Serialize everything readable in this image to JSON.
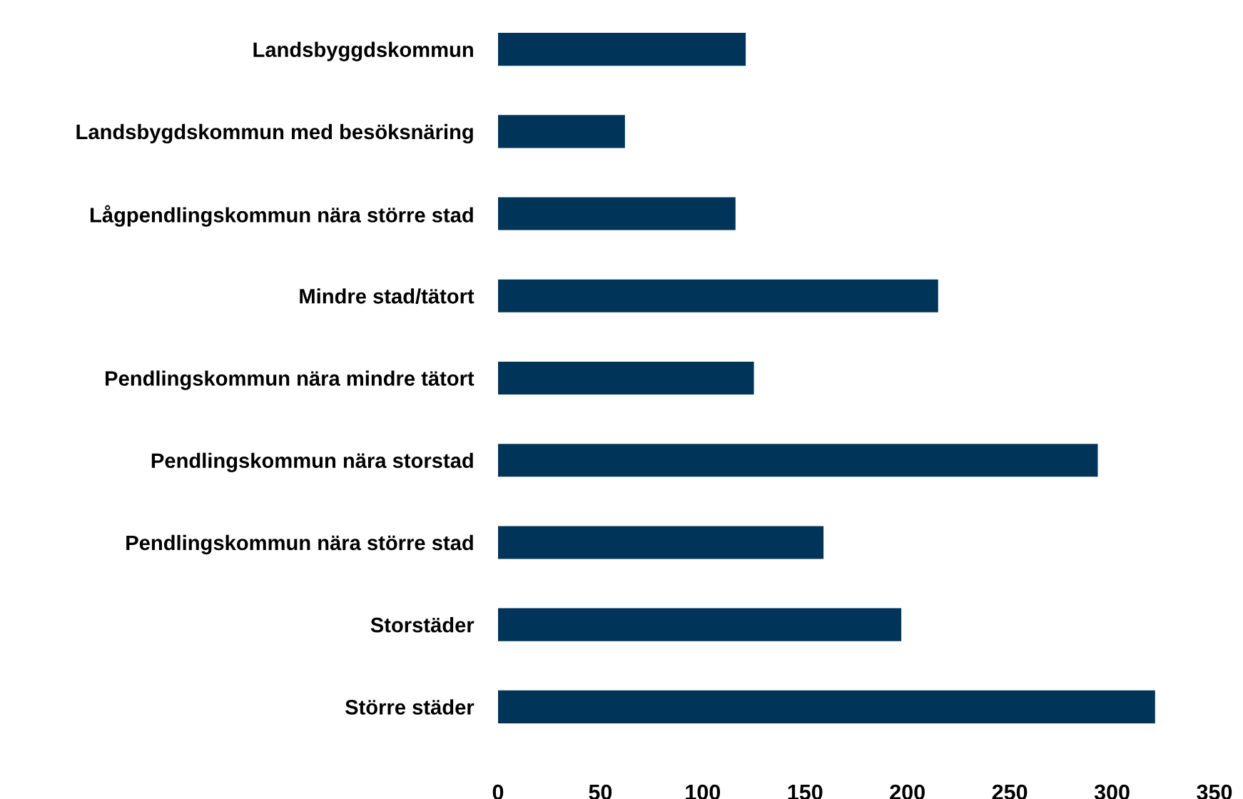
{
  "chart_data": {
    "type": "bar",
    "orientation": "horizontal",
    "categories": [
      "Landsbyggdskommun",
      "Landsbygdskommun med besöksnäring",
      "Lågpendlingskommun nära större stad",
      "Mindre stad/tätort",
      "Pendlingskommun nära mindre tätort",
      "Pendlingskommun nära storstad",
      "Pendlingskommun nära större stad",
      "Storstäder",
      "Större städer"
    ],
    "values": [
      121,
      62,
      116,
      215,
      125,
      293,
      159,
      197,
      321
    ],
    "color": "#003459",
    "xlim": [
      0,
      350
    ],
    "xticks": [
      0,
      50,
      100,
      150,
      200,
      250,
      300,
      350
    ],
    "grid": false
  }
}
